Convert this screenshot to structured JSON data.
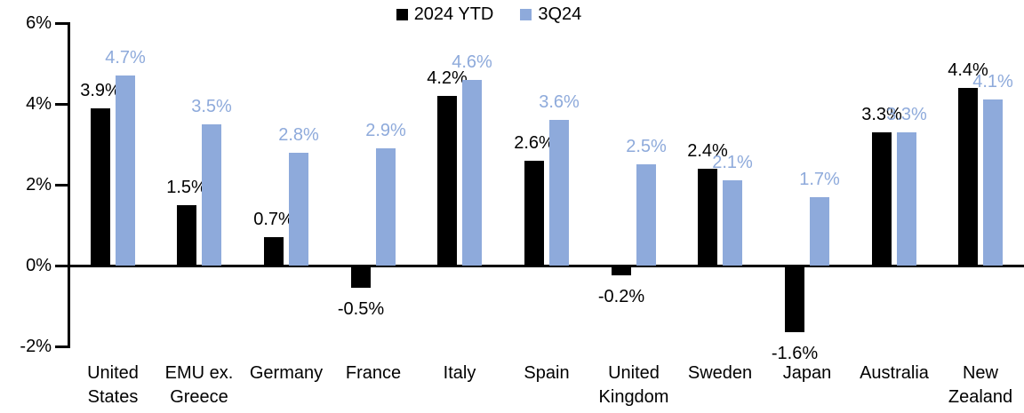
{
  "chart_data": {
    "type": "bar",
    "title": "",
    "categories": [
      "United States",
      "EMU ex. Greece",
      "Germany",
      "France",
      "Italy",
      "Spain",
      "United Kingdom",
      "Sweden",
      "Japan",
      "Australia",
      "New Zealand"
    ],
    "series": [
      {
        "name": "2024 YTD",
        "color": "#000000",
        "values": [
          3.9,
          1.5,
          0.7,
          -0.5,
          4.2,
          2.6,
          -0.2,
          2.4,
          -1.6,
          3.3,
          4.4
        ],
        "labels": [
          "3.9%",
          "1.5%",
          "0.7%",
          "-0.5%",
          "4.2%",
          "2.6%",
          "-0.2%",
          "2.4%",
          "-1.6%",
          "3.3%",
          "4.4%"
        ]
      },
      {
        "name": "3Q24",
        "color": "#8EAADB",
        "values": [
          4.7,
          3.5,
          2.8,
          2.9,
          4.6,
          3.6,
          2.5,
          2.1,
          1.7,
          3.3,
          4.1
        ],
        "labels": [
          "4.7%",
          "3.5%",
          "2.8%",
          "2.9%",
          "4.6%",
          "3.6%",
          "2.5%",
          "2.1%",
          "1.7%",
          "3.3%",
          "4.1%"
        ]
      }
    ],
    "y_axis": {
      "ticks": [
        {
          "label": "6%",
          "value": 6
        },
        {
          "label": "4%",
          "value": 4
        },
        {
          "label": "2%",
          "value": 2
        },
        {
          "label": "0%",
          "value": 0
        },
        {
          "label": "-2%",
          "value": -2
        }
      ],
      "ylim": [
        -2,
        6
      ]
    },
    "grid": false,
    "legend_position": "top-center",
    "axis_color": "#000000",
    "background_color": "#FFFFFF"
  }
}
